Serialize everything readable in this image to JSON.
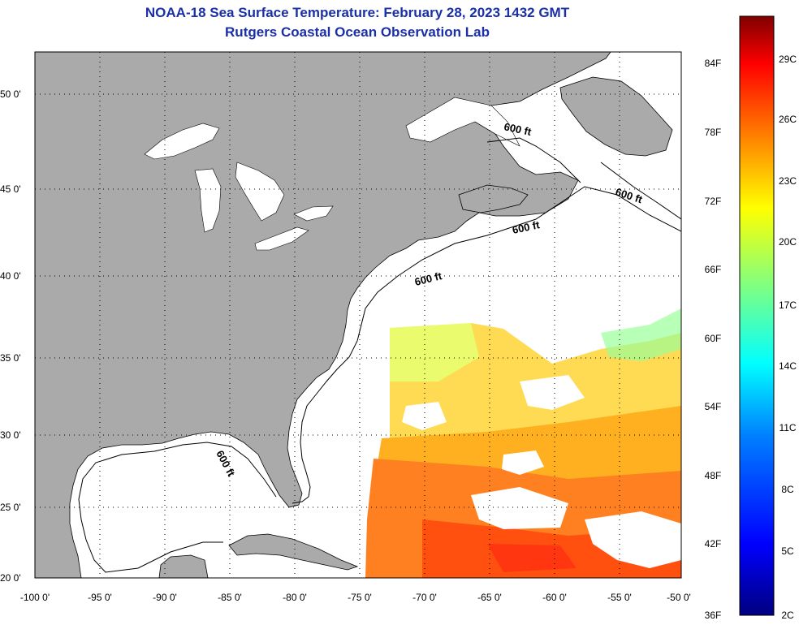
{
  "title": "NOAA-18 Sea Surface Temperature:  February 28, 2023 1432 GMT",
  "subtitle": "Rutgers Coastal Ocean Observation Lab",
  "x_ticks": [
    "-100 0'",
    "-95 0'",
    "-90 0'",
    "-85 0'",
    "-80 0'",
    "-75 0'",
    "-70 0'",
    "-65 0'",
    "-60 0'",
    "-55 0'",
    "-50 0'"
  ],
  "y_ticks": [
    "50 0'",
    "45 0'",
    "40 0'",
    "35 0'",
    "30 0'",
    "25 0'",
    "20 0'"
  ],
  "contour_label": "600 ft",
  "colorbar": {
    "f_labels": [
      "84F",
      "78F",
      "72F",
      "66F",
      "60F",
      "54F",
      "48F",
      "42F",
      "36F"
    ],
    "c_labels": [
      "29C",
      "26C",
      "23C",
      "20C",
      "17C",
      "14C",
      "11C",
      "8C",
      "5C",
      "2C"
    ]
  },
  "colors": {
    "land": "#aaaaaa",
    "ocean": "#ffffff",
    "title": "#1a2fa8"
  }
}
